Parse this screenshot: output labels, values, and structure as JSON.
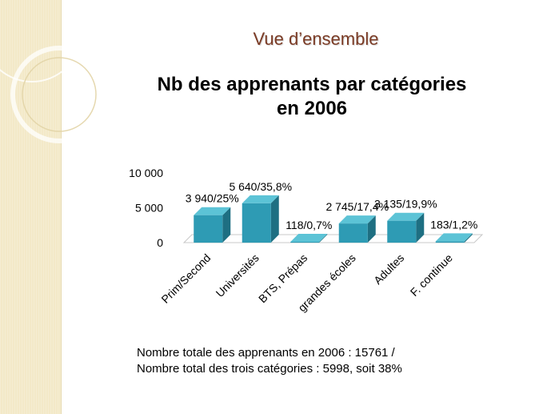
{
  "slide": {
    "section_title": "Vue d’ensemble",
    "title_line1": "Nb des apprenants par catégories",
    "title_line2": "en 2006",
    "footnote_line1": "Nombre totale des apprenants en 2006 : 15761 /",
    "footnote_line2": "Nombre total des trois catégories : 5998, soit 38%"
  },
  "colors": {
    "band": "#f3e9c8",
    "bar_front": "#2e9bb4",
    "bar_top": "#5cc3d6",
    "bar_side": "#1e6f82",
    "title_accent": "#7a3a24"
  },
  "chart_data": {
    "type": "bar",
    "categories": [
      "Prim/Second",
      "Universités",
      "BTS, Prépas",
      "grandes écoles",
      "Adultes",
      "F. continue"
    ],
    "values": [
      3940,
      5640,
      118,
      2745,
      3135,
      183
    ],
    "data_labels": [
      "3 940/25%",
      "5 640/35,8%",
      "118/0,7%",
      "2 745/17,4%",
      "3 135/19,9%",
      "183/1,2%"
    ],
    "ylim": [
      0,
      10000
    ],
    "yticks": [
      0,
      5000,
      10000
    ],
    "ytick_labels": [
      "0",
      "5 000",
      "10 000"
    ],
    "grid": false,
    "legend": "none"
  }
}
